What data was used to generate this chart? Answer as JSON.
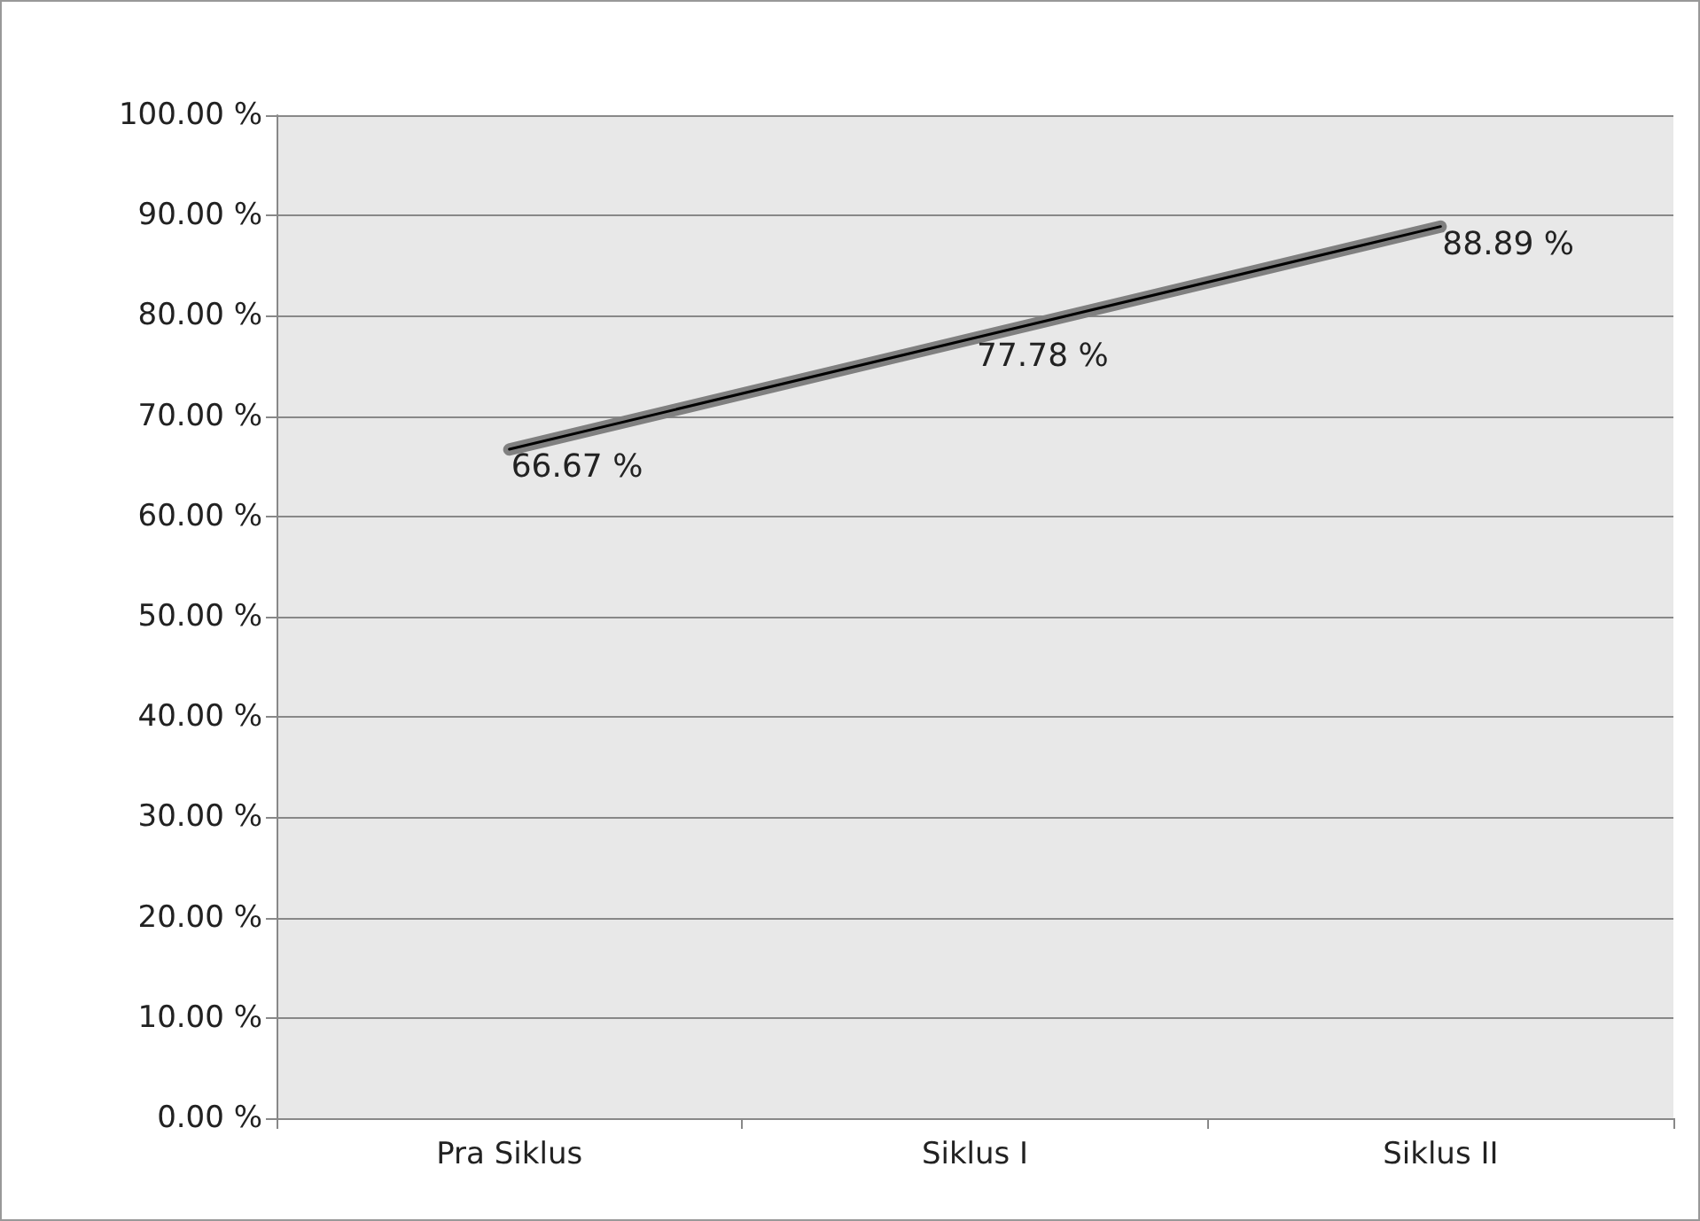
{
  "chart_data": {
    "type": "line",
    "categories": [
      "Pra Siklus",
      "Siklus I",
      "Siklus II"
    ],
    "series": [
      {
        "color": "#808080",
        "values": [
          66.67,
          77.78,
          88.89
        ],
        "value_labels": [
          "66.67 %",
          "77.78 %",
          "88.89 %"
        ]
      },
      {
        "color": "#000000",
        "values": [
          66.7,
          77.8,
          88.9
        ]
      }
    ],
    "ylim": [
      0,
      100
    ],
    "yticks": [
      {
        "value": 0,
        "label": "0.00 %"
      },
      {
        "value": 10,
        "label": "10.00 %"
      },
      {
        "value": 20,
        "label": "20.00 %"
      },
      {
        "value": 30,
        "label": "30.00 %"
      },
      {
        "value": 40,
        "label": "40.00 %"
      },
      {
        "value": 50,
        "label": "50.00 %"
      },
      {
        "value": 60,
        "label": "60.00 %"
      },
      {
        "value": 70,
        "label": "70.00 %"
      },
      {
        "value": 80,
        "label": "80.00 %"
      },
      {
        "value": 90,
        "label": "90.00 %"
      },
      {
        "value": 100,
        "label": "100.00 %"
      }
    ],
    "grid": "y",
    "marker": "none",
    "line_style": "solid"
  }
}
